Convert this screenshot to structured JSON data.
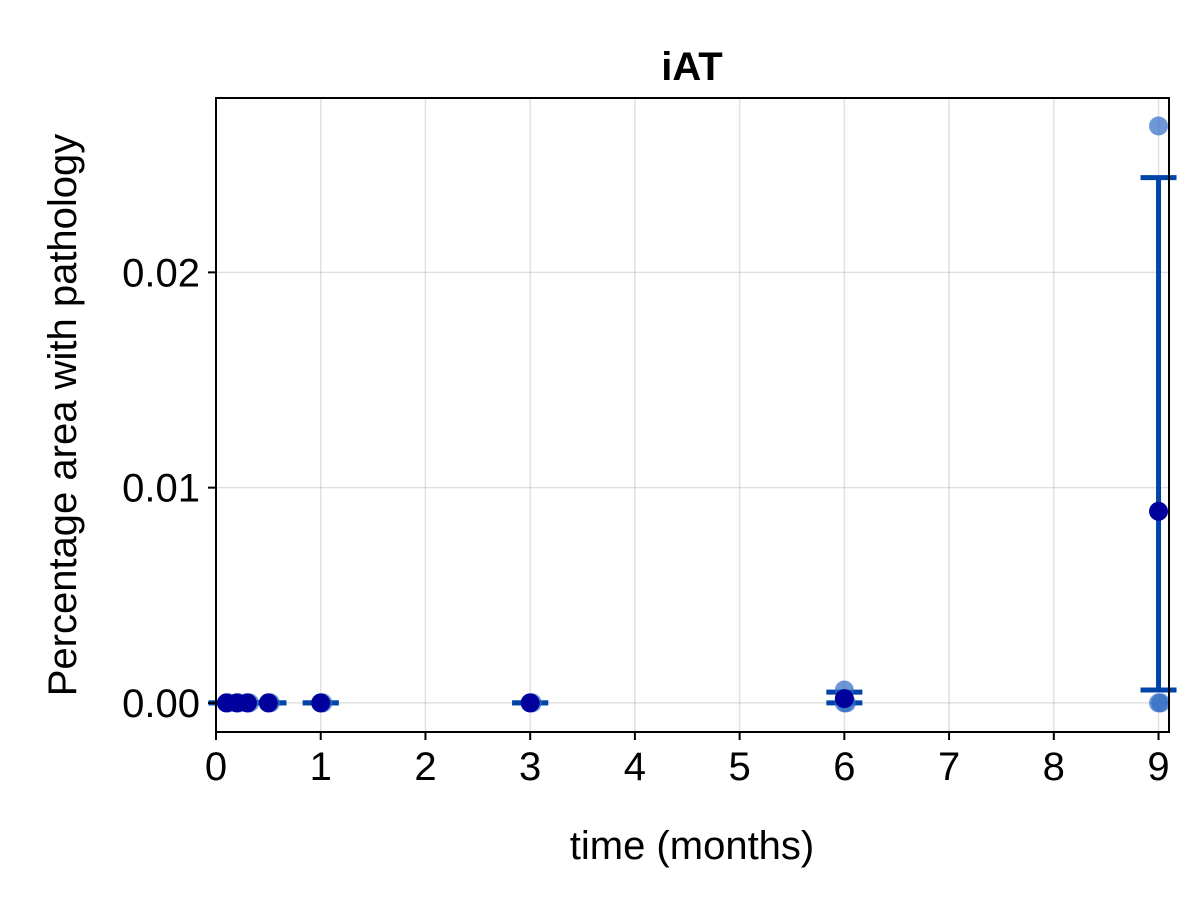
{
  "chart_data": {
    "type": "scatter",
    "title": "iAT",
    "xlabel": "time (months)",
    "ylabel": "Percentage area with pathology",
    "xlim": [
      0,
      9.1
    ],
    "ylim": [
      -0.00135,
      0.0281
    ],
    "xticks": [
      0,
      1,
      2,
      3,
      4,
      5,
      6,
      7,
      8,
      9
    ],
    "xtick_labels": [
      "0",
      "1",
      "2",
      "3",
      "4",
      "5",
      "6",
      "7",
      "8",
      "9"
    ],
    "yticks": [
      0.0,
      0.01,
      0.02
    ],
    "ytick_labels": [
      "0.00",
      "0.01",
      "0.02"
    ],
    "grid": true,
    "colors": {
      "points": "#2f6bc4",
      "errorbar": "#0044a8",
      "mean": "#00009c"
    },
    "points": [
      {
        "x": 0.1,
        "y": 0.0
      },
      {
        "x": 0.12,
        "y": 0.0
      },
      {
        "x": 0.2,
        "y": 0.0
      },
      {
        "x": 0.22,
        "y": 0.0
      },
      {
        "x": 0.3,
        "y": 0.0
      },
      {
        "x": 0.32,
        "y": 0.0
      },
      {
        "x": 0.5,
        "y": 0.0
      },
      {
        "x": 0.52,
        "y": 0.0
      },
      {
        "x": 1.0,
        "y": 0.0
      },
      {
        "x": 1.02,
        "y": 0.0
      },
      {
        "x": 3.0,
        "y": 0.0
      },
      {
        "x": 3.02,
        "y": 0.0
      },
      {
        "x": 6.0,
        "y": 0.0006
      },
      {
        "x": 6.0,
        "y": 0.0
      },
      {
        "x": 6.02,
        "y": 0.0
      },
      {
        "x": 9.0,
        "y": 0.0268
      },
      {
        "x": 9.0,
        "y": 0.0
      },
      {
        "x": 9.02,
        "y": 0.0
      }
    ],
    "summary": [
      {
        "x": 0.1,
        "mean": 0.0,
        "lower": 0.0,
        "upper": 0.0
      },
      {
        "x": 0.2,
        "mean": 0.0,
        "lower": 0.0,
        "upper": 0.0
      },
      {
        "x": 0.3,
        "mean": 0.0,
        "lower": 0.0,
        "upper": 0.0
      },
      {
        "x": 0.5,
        "mean": 0.0,
        "lower": 0.0,
        "upper": 0.0
      },
      {
        "x": 1.0,
        "mean": 0.0,
        "lower": 0.0,
        "upper": 0.0
      },
      {
        "x": 3.0,
        "mean": 0.0,
        "lower": 0.0,
        "upper": 0.0
      },
      {
        "x": 6.0,
        "mean": 0.0002,
        "lower": 0.0,
        "upper": 0.0005
      },
      {
        "x": 9.0,
        "mean": 0.0089,
        "lower": 0.0006,
        "upper": 0.0244
      }
    ]
  }
}
